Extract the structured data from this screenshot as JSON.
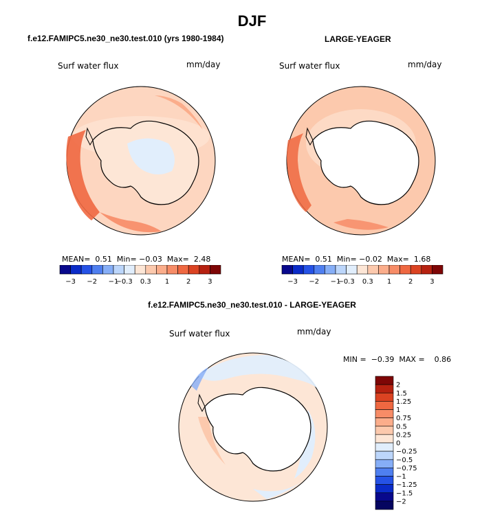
{
  "figure": {
    "season": "DJF"
  },
  "panels": [
    {
      "title": "f.e12.FAMIPC5.ne30_ne30.test.010 (yrs 1980-1984)",
      "variable": "Surf water flux",
      "units": "mm/day",
      "stats": {
        "mean_label": "MEAN=",
        "mean": "0.51",
        "min_label": "Min=",
        "min": "−0.03",
        "max_label": "Max=",
        "max": "2.48"
      }
    },
    {
      "title": "LARGE-YEAGER",
      "variable": "Surf water flux",
      "units": "mm/day",
      "stats": {
        "mean_label": "MEAN=",
        "mean": "0.51",
        "min_label": "Min=",
        "min": "−0.02",
        "max_label": "Max=",
        "max": "1.68"
      }
    },
    {
      "title": "f.e12.FAMIPC5.ne30_ne30.test.010 - LARGE-YEAGER",
      "variable": "Surf water flux",
      "units": "mm/day",
      "stats": {
        "min_label": "MIN =",
        "min": "−0.39",
        "max_label": "MAX =",
        "max": "0.86"
      }
    }
  ],
  "chart_data": [
    {
      "type": "heatmap",
      "projection": "south-polar-stereographic",
      "title": "f.e12.FAMIPC5.ne30_ne30.test.010 (yrs 1980-1984)",
      "variable": "Surf water flux",
      "units": "mm/day",
      "mean": 0.51,
      "min": -0.03,
      "max": 2.48,
      "colorbar": {
        "labels": [
          "−3",
          "−2",
          "−1",
          "−0.3",
          "0.3",
          "1",
          "2",
          "3"
        ],
        "levels": [
          -3,
          -2,
          -1,
          -0.3,
          0.3,
          1,
          2,
          3
        ],
        "colors": [
          "#08088c",
          "#0a2bc8",
          "#2552e6",
          "#4f7ff0",
          "#86aef7",
          "#bcd6fb",
          "#e1eefc",
          "#fde6d6",
          "#fcc9ad",
          "#fbad8b",
          "#f78c67",
          "#ef6841",
          "#db4322",
          "#b62110",
          "#7e0606"
        ]
      }
    },
    {
      "type": "heatmap",
      "projection": "south-polar-stereographic",
      "title": "LARGE-YEAGER",
      "variable": "Surf water flux",
      "units": "mm/day",
      "mean": 0.51,
      "min": -0.02,
      "max": 1.68,
      "colorbar": {
        "labels": [
          "−3",
          "−2",
          "−1",
          "−0.3",
          "0.3",
          "1",
          "2",
          "3"
        ],
        "levels": [
          -3,
          -2,
          -1,
          -0.3,
          0.3,
          1,
          2,
          3
        ],
        "colors": [
          "#08088c",
          "#0a2bc8",
          "#2552e6",
          "#4f7ff0",
          "#86aef7",
          "#bcd6fb",
          "#e1eefc",
          "#fde6d6",
          "#fcc9ad",
          "#fbad8b",
          "#f78c67",
          "#ef6841",
          "#db4322",
          "#b62110",
          "#7e0606"
        ]
      }
    },
    {
      "type": "heatmap",
      "projection": "south-polar-stereographic",
      "title": "f.e12.FAMIPC5.ne30_ne30.test.010 - LARGE-YEAGER",
      "variable": "Surf water flux",
      "units": "mm/day",
      "min": -0.39,
      "max": 0.86,
      "colorbar": {
        "orientation": "vertical",
        "labels": [
          "2",
          "1.5",
          "1.25",
          "1",
          "0.75",
          "0.5",
          "0.25",
          "0",
          "−0.25",
          "−0.5",
          "−0.75",
          "−1",
          "−1.25",
          "−1.5",
          "−2"
        ],
        "levels": [
          2,
          1.5,
          1.25,
          1,
          0.75,
          0.5,
          0.25,
          0,
          -0.25,
          -0.5,
          -0.75,
          -1,
          -1.25,
          -1.5,
          -2
        ],
        "colors": [
          "#7e0606",
          "#b62110",
          "#db4322",
          "#ef6841",
          "#f78c67",
          "#fbad8b",
          "#fcc9ad",
          "#fde6d6",
          "#e1eefc",
          "#bcd6fb",
          "#86aef7",
          "#4f7ff0",
          "#2552e6",
          "#0a2bc8",
          "#08088c",
          "#050560"
        ]
      }
    }
  ]
}
